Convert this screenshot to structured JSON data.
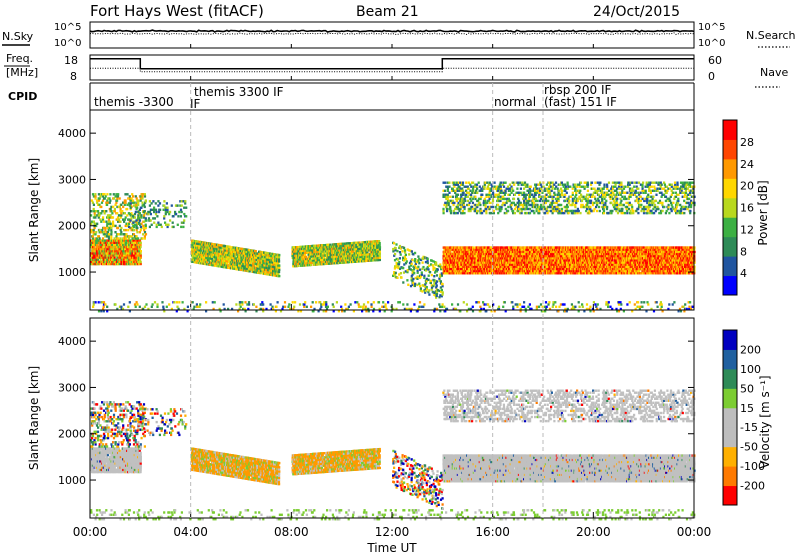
{
  "header": {
    "station": "Fort Hays West (fitACF)",
    "beam": "Beam 21",
    "date": "24/Oct/2015"
  },
  "strip_labels": {
    "nsky": "N.Sky",
    "nsearch": "N.Search",
    "freq_line1": "Freq.",
    "freq_line2": "[MHz]",
    "nave": "Nave",
    "cpid": "CPID"
  },
  "chart_data": [
    {
      "type": "line",
      "name": "noise",
      "y_ticks_left": [
        "10^5",
        "10^0"
      ],
      "y_ticks_right": [
        "10^5",
        "10^0"
      ],
      "noise_sky_level": 0.65,
      "noise_search_level": 0.55
    },
    {
      "type": "line",
      "name": "frequency-nave",
      "y_ticks_left": [
        "18",
        "8"
      ],
      "y_ticks_right": [
        "60",
        "0"
      ],
      "freq_mhz": [
        {
          "t0": 0.0,
          "t1": 2.0,
          "value": 16.5
        },
        {
          "t0": 2.0,
          "t1": 14.0,
          "value": 12.5
        },
        {
          "t0": 14.0,
          "t1": 24.0,
          "value": 16.5
        }
      ],
      "nave": [
        {
          "t0": 0.0,
          "t1": 2.0,
          "value": 28
        },
        {
          "t0": 2.0,
          "t1": 14.0,
          "value": 20
        },
        {
          "t0": 14.0,
          "t1": 24.0,
          "value": 28
        }
      ]
    },
    {
      "type": "table",
      "name": "cpid",
      "segments": [
        {
          "start": 0.0,
          "label": "themis -3300",
          "label2": "IF"
        },
        {
          "start": 4.0,
          "label": "themis 3300 IF",
          "label2": ""
        },
        {
          "start": 16.0,
          "label": "normal",
          "label2": ""
        },
        {
          "start": 18.0,
          "label": "rbsp 200 IF",
          "label2": "(fast) 151 IF"
        }
      ]
    },
    {
      "type": "heatmap",
      "name": "power",
      "ylabel": "Slant Range [km]",
      "y_ticks": [
        1000,
        2000,
        3000,
        4000
      ],
      "ylim": [
        180,
        4500
      ],
      "cbar_label": "Power [dB]",
      "cbar_ticks": [
        "28",
        "24",
        "20",
        "16",
        "12",
        "8",
        "4"
      ]
    },
    {
      "type": "heatmap",
      "name": "velocity",
      "ylabel": "Slant Range [km]",
      "y_ticks": [
        1000,
        2000,
        3000,
        4000
      ],
      "ylim": [
        180,
        4500
      ],
      "cbar_label": "Velocity [m s⁻¹]",
      "cbar_ticks": [
        "200",
        "100",
        "50",
        "15",
        "-15",
        "-50",
        "-100",
        "-200"
      ]
    }
  ],
  "time_axis": {
    "label": "Time UT",
    "xlim": [
      0,
      24
    ],
    "ticks": [
      0,
      4,
      8,
      12,
      16,
      20,
      24
    ],
    "tick_labels": [
      "00:00",
      "04:00",
      "08:00",
      "12:00",
      "16:00",
      "20:00",
      "00:00"
    ],
    "cpid_boundaries": [
      4.0,
      16.0,
      18.0
    ]
  },
  "colors": {
    "power_scale": [
      "#0000ff",
      "#2055a0",
      "#2e8b57",
      "#3cb043",
      "#b8d81e",
      "#ffd700",
      "#ff9900",
      "#ff4500",
      "#ff0000"
    ],
    "velocity_scale": [
      "#ff0000",
      "#ff7a00",
      "#ffb000",
      "#bdbdbd",
      "#bdbdbd",
      "#7ccd32",
      "#2e8b57",
      "#2060a0",
      "#0000c0"
    ]
  }
}
